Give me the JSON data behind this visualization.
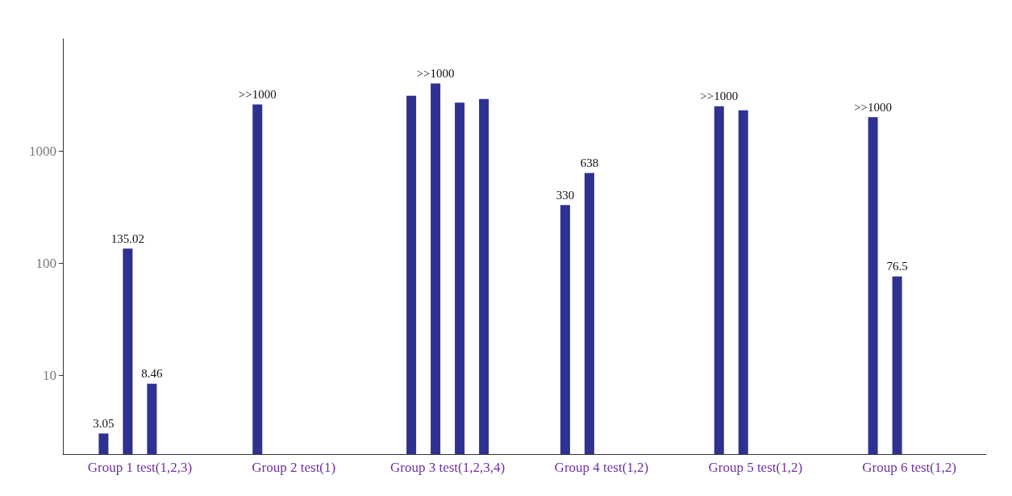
{
  "chart_data": {
    "type": "bar",
    "categories": [
      "Group 1 test(1,2,3)",
      "Group 2 test(1)",
      "Group 3 test(1,2,3,4)",
      "Group 4 test(1,2)",
      "Group 5 test(1,2)",
      "Group 6 test(1,2)"
    ],
    "series": [
      {
        "color": "#2e3192",
        "values": [
          3.05,
          2600,
          3100,
          330,
          2500,
          2000
        ],
        "value_labels": [
          "3.05",
          ">>1000",
          null,
          "330",
          ">>1000",
          ">>1000"
        ]
      },
      {
        "color": "#2e3192",
        "values": [
          135.02,
          null,
          4000,
          638,
          2300,
          76.5
        ],
        "value_labels": [
          "135.02",
          null,
          ">>1000",
          "638",
          null,
          "76.5"
        ]
      },
      {
        "color": "#2e3192",
        "values": [
          8.46,
          null,
          2700,
          null,
          null,
          null
        ],
        "value_labels": [
          "8.46",
          null,
          null,
          null,
          null,
          null
        ]
      },
      {
        "color": "#2e3192",
        "values": [
          null,
          null,
          2900,
          null,
          null,
          null
        ],
        "value_labels": [
          null,
          null,
          null,
          null,
          null,
          null
        ]
      }
    ],
    "log": "y",
    "ylim": [
      2,
      10000
    ],
    "yticks": [
      10,
      100,
      1000
    ],
    "grid": false
  }
}
